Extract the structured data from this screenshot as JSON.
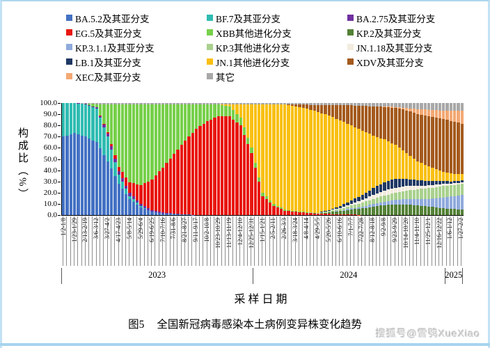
{
  "page": {
    "background": "#ffffff",
    "frame_color": "#C2E1F4",
    "bottom_bar_color": "#A6D4EE"
  },
  "watermark": {
    "text": "搜狐号@雪鸮XueXiao",
    "color": "#cbcbcb"
  },
  "caption": {
    "prefix": "图5",
    "text": "全国新冠病毒感染本土病例变异株变化趋势"
  },
  "legend": {
    "columns": [
      [
        {
          "label": "BA.5.2及其亚分支",
          "color": "#4472C4"
        },
        {
          "label": "EG.5及其亚分支",
          "color": "#E8170F"
        },
        {
          "label": "KP.3.1.1及其亚分支",
          "color": "#8FAADC"
        },
        {
          "label": "LB.1及其亚分支",
          "color": "#1F3864"
        },
        {
          "label": "XEC及其亚分支",
          "color": "#F3A873"
        }
      ],
      [
        {
          "label": "BF.7及其亚分支",
          "color": "#30BCB2"
        },
        {
          "label": "XBB其他进化分支",
          "color": "#77D04B"
        },
        {
          "label": "KP.3其他进化分支",
          "color": "#A9D18E"
        },
        {
          "label": "JN.1其他进化分支",
          "color": "#F9C013"
        },
        {
          "label": "其它",
          "color": "#A8A8A8"
        }
      ],
      [
        {
          "label": "BA.2.75及其亚分支",
          "color": "#7030A0"
        },
        {
          "label": "KP.2及其亚分支",
          "color": "#538135"
        },
        {
          "label": "JN.1.18及其亚分支",
          "color": "#F2ECDF"
        },
        {
          "label": "XDV及其亚分支",
          "color": "#A45A1E"
        }
      ]
    ]
  },
  "chart_data": {
    "type": "bar",
    "variant": "100%-stacked weekly bars",
    "title": "图5 全国新冠病毒感染本土病例变异株变化趋势",
    "xlabel": "采样日期",
    "ylabel": "构成比（%）",
    "ylim": [
      0,
      100
    ],
    "grid": false,
    "y_ticks": [
      "100.0",
      "90.0",
      "80.0",
      "70.0",
      "60.0",
      "50.0",
      "40.0",
      "30.0",
      "20.0",
      "10.0",
      "0.0"
    ],
    "n_bars": 109,
    "x_label_every_n_bars": 3,
    "x_labels": [
      "1/2-1/8",
      "1/23-1/29",
      "2/13-2/19",
      "3/6-3/12",
      "3/27-4/2",
      "4/17-4/23",
      "5/8-5/14",
      "5/29-6/4",
      "6/19-6/25",
      "7/10-7/16",
      "7/31-8/6",
      "8/21-8/27",
      "9/11-9/17",
      "10/2-10/8",
      "10/23-10/29",
      "11/13-11/19",
      "12/4-12/10",
      "12/25-12/31",
      "1/15-1/21",
      "2/5-2/11",
      "2/26-3/3",
      "3/18-3/24",
      "4/8-4/14",
      "4/29-5/5",
      "5/20-5/26",
      "6/10-6/16",
      "7/1-7/7",
      "7/22-7/28",
      "8/12-8/18",
      "9/2-9/8",
      "9/23-9/29",
      "10/14-10/20",
      "11/4-11/10",
      "11/25-12/1",
      "12/16-12/22",
      "1/6-1/12",
      "1/27-2/2"
    ],
    "year_bands": [
      {
        "label": "2023",
        "bars": 52
      },
      {
        "label": "2024",
        "bars": 52
      },
      {
        "label": "2025",
        "bars": 5
      }
    ],
    "series": [
      {
        "name": "BA.5.2及其亚分支",
        "color": "#4472C4"
      },
      {
        "name": "BF.7及其亚分支",
        "color": "#30BCB2"
      },
      {
        "name": "BA.2.75及其亚分支",
        "color": "#7030A0"
      },
      {
        "name": "EG.5及其亚分支",
        "color": "#E8170F"
      },
      {
        "name": "XBB其他进化分支",
        "color": "#77D04B"
      },
      {
        "name": "KP.2及其亚分支",
        "color": "#538135"
      },
      {
        "name": "KP.3.1.1及其亚分支",
        "color": "#8FAADC"
      },
      {
        "name": "KP.3其他进化分支",
        "color": "#A9D18E"
      },
      {
        "name": "JN.1.18及其亚分支",
        "color": "#F2ECDF"
      },
      {
        "name": "LB.1及其亚分支",
        "color": "#1F3864"
      },
      {
        "name": "JN.1其他进化分支",
        "color": "#F9C013"
      },
      {
        "name": "XDV及其亚分支",
        "color": "#A45A1E"
      },
      {
        "name": "XEC及其亚分支",
        "color": "#F3A873"
      },
      {
        "name": "其它",
        "color": "#A8A8A8"
      }
    ],
    "samples_note": "Estimated composition (%) at each labeled sampling week, series in stack order (bottom to top); intermediate weekly bars are linearly interpolated.",
    "samples": [
      [
        70,
        30,
        0,
        0,
        0,
        0,
        0,
        0,
        0,
        0,
        0,
        0,
        0,
        0
      ],
      [
        73,
        27,
        0,
        0,
        0,
        0,
        0,
        0,
        0,
        0,
        0,
        0,
        0,
        0
      ],
      [
        70,
        29,
        0.5,
        0,
        0,
        0,
        0,
        0,
        0,
        0,
        0,
        0,
        0,
        0.5
      ],
      [
        65,
        30,
        1,
        0,
        3,
        0,
        0,
        0,
        0,
        0,
        0,
        0,
        0,
        1
      ],
      [
        48,
        22,
        3,
        1,
        25,
        0,
        0,
        0,
        0,
        0,
        0,
        0,
        0,
        1
      ],
      [
        28,
        8,
        3,
        4,
        56,
        0,
        0,
        0,
        0,
        0,
        0,
        0,
        0,
        1
      ],
      [
        14,
        3,
        3,
        9,
        70,
        0,
        0,
        0,
        0,
        0,
        0,
        0,
        0,
        1
      ],
      [
        7,
        1,
        2,
        17,
        72,
        0,
        0,
        0,
        0,
        0,
        0,
        0,
        0,
        1
      ],
      [
        3,
        0,
        1.5,
        27,
        67.5,
        0,
        0,
        0,
        0,
        0,
        0,
        0,
        0,
        1
      ],
      [
        1.5,
        0,
        1,
        40,
        56.5,
        0,
        0,
        0,
        0,
        0,
        0,
        0,
        0,
        1
      ],
      [
        1,
        0,
        0.5,
        53,
        44.5,
        0,
        0,
        0,
        0,
        0,
        0,
        0,
        0,
        1
      ],
      [
        0.5,
        0,
        0,
        66,
        32,
        0,
        0,
        0,
        0,
        0,
        0,
        0,
        0,
        1.5
      ],
      [
        0,
        0,
        0,
        77,
        21.5,
        0,
        0,
        0,
        0,
        0,
        0,
        0,
        0,
        1.5
      ],
      [
        0,
        0,
        0,
        84,
        14.5,
        0,
        0,
        0,
        0,
        0,
        0,
        0,
        0,
        1.5
      ],
      [
        0,
        0,
        0,
        88,
        10.5,
        0,
        0,
        0,
        0,
        0,
        0,
        0,
        0,
        1.5
      ],
      [
        0,
        0,
        0,
        88,
        9,
        0,
        0,
        0,
        0,
        0,
        1.5,
        0,
        0,
        1.5
      ],
      [
        0,
        0,
        0,
        80,
        7,
        0,
        0,
        0,
        0,
        0,
        11.5,
        0,
        0,
        1.5
      ],
      [
        0,
        0,
        0,
        55,
        5,
        0,
        0,
        0,
        0,
        0,
        38.5,
        0,
        0,
        1.5
      ],
      [
        0,
        0,
        0,
        17,
        3,
        0,
        0,
        0,
        0,
        0,
        78.5,
        0,
        0,
        1.5
      ],
      [
        0,
        0,
        0,
        8,
        2,
        0,
        0,
        0,
        0,
        0,
        88.5,
        0,
        0,
        1.5
      ],
      [
        0,
        0,
        0,
        4,
        1,
        0,
        0,
        0,
        0,
        0,
        93.5,
        0,
        0,
        1.5
      ],
      [
        0,
        0,
        0,
        3,
        0.5,
        0,
        0,
        0,
        0,
        0,
        93.5,
        1.5,
        0,
        1.5
      ],
      [
        0,
        0,
        0,
        2,
        0.5,
        0,
        0,
        0,
        0,
        0,
        92.5,
        3.5,
        0,
        1.5
      ],
      [
        0,
        0,
        0,
        1,
        0,
        0.5,
        0,
        0.5,
        0,
        0,
        90,
        6,
        0,
        2
      ],
      [
        0,
        0,
        0,
        1,
        0,
        1.5,
        0,
        1,
        0.5,
        0.5,
        84.5,
        9,
        0,
        2
      ],
      [
        0,
        0,
        0,
        0.5,
        0,
        3,
        0.5,
        1.5,
        1,
        1.5,
        76.5,
        13.5,
        0,
        2
      ],
      [
        0,
        0,
        0,
        0.5,
        0,
        4.5,
        1,
        2.5,
        1.5,
        3,
        67,
        18,
        0,
        2
      ],
      [
        0,
        0,
        0,
        0,
        0,
        6,
        1.5,
        3.5,
        2.5,
        4.5,
        57.5,
        22,
        0,
        2.5
      ],
      [
        0,
        0,
        0,
        0,
        0,
        7.5,
        2.5,
        4.5,
        3.5,
        6,
        47,
        26,
        0,
        3
      ],
      [
        0,
        0,
        0,
        0,
        0,
        9,
        3,
        5.5,
        4.5,
        7.5,
        38,
        29,
        0.5,
        3
      ],
      [
        0,
        0,
        0,
        0,
        0,
        9.5,
        4,
        6.5,
        4.5,
        8,
        30,
        33,
        1,
        3.5
      ],
      [
        0,
        0,
        0,
        0,
        0,
        9.5,
        5,
        7.5,
        4,
        6.5,
        23,
        38,
        2,
        4.5
      ],
      [
        0,
        0,
        0,
        0,
        0,
        8.5,
        6,
        8.5,
        3,
        5,
        17,
        42,
        4.5,
        5.5
      ],
      [
        0,
        0,
        0,
        0,
        0,
        7.5,
        7,
        9.5,
        2.5,
        4,
        13,
        45,
        5.5,
        6
      ],
      [
        0,
        0,
        0,
        0,
        0,
        6.5,
        9,
        10,
        2,
        3,
        9,
        47,
        7,
        6.5
      ],
      [
        0,
        0,
        0,
        0,
        0,
        5.5,
        11,
        10,
        1.5,
        2,
        7,
        47,
        9.5,
        6.5
      ],
      [
        0,
        0,
        0,
        0,
        0,
        5,
        13,
        10,
        1,
        2,
        5.5,
        45,
        12,
        6.5
      ]
    ]
  }
}
